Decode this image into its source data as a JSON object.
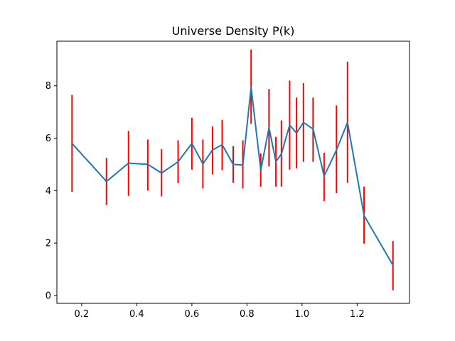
{
  "chart_data": {
    "type": "line",
    "title": "Universe Density P(k)",
    "xlabel": "",
    "ylabel": "",
    "xlim": [
      0.11,
      1.39
    ],
    "ylim": [
      -0.3,
      9.7
    ],
    "xticks": [
      "0.2",
      "0.4",
      "0.6",
      "0.8",
      "1.0",
      "1.2"
    ],
    "yticks": [
      "0",
      "2",
      "4",
      "6",
      "8"
    ],
    "grid": false,
    "colors": {
      "line": "#1f77b4",
      "errorbar": "#ff0000"
    },
    "series": [
      {
        "x": [
          0.165,
          0.29,
          0.37,
          0.44,
          0.49,
          0.55,
          0.6,
          0.64,
          0.675,
          0.71,
          0.75,
          0.785,
          0.815,
          0.85,
          0.88,
          0.905,
          0.925,
          0.955,
          0.98,
          1.005,
          1.04,
          1.08,
          1.125,
          1.165,
          1.225,
          1.33
        ],
        "y": [
          5.8,
          4.35,
          5.05,
          5.0,
          4.67,
          5.1,
          5.8,
          5.02,
          5.55,
          5.75,
          5.0,
          4.98,
          7.95,
          4.78,
          6.4,
          5.1,
          5.4,
          6.5,
          6.2,
          6.6,
          6.35,
          4.55,
          5.55,
          6.6,
          3.05,
          1.15
        ],
        "yerr_low": [
          3.95,
          3.45,
          3.8,
          4.0,
          3.78,
          4.28,
          4.8,
          4.08,
          4.62,
          4.78,
          4.3,
          4.08,
          6.55,
          4.15,
          4.92,
          4.15,
          4.15,
          4.8,
          4.85,
          5.1,
          5.1,
          3.6,
          3.9,
          4.3,
          1.98,
          0.2
        ],
        "yerr_high": [
          7.65,
          5.25,
          6.28,
          5.95,
          5.58,
          5.92,
          6.78,
          5.95,
          6.45,
          6.7,
          5.7,
          5.92,
          9.38,
          5.42,
          7.88,
          6.05,
          6.68,
          8.2,
          7.55,
          8.1,
          7.55,
          5.45,
          7.25,
          8.92,
          4.15,
          2.08
        ]
      }
    ]
  }
}
